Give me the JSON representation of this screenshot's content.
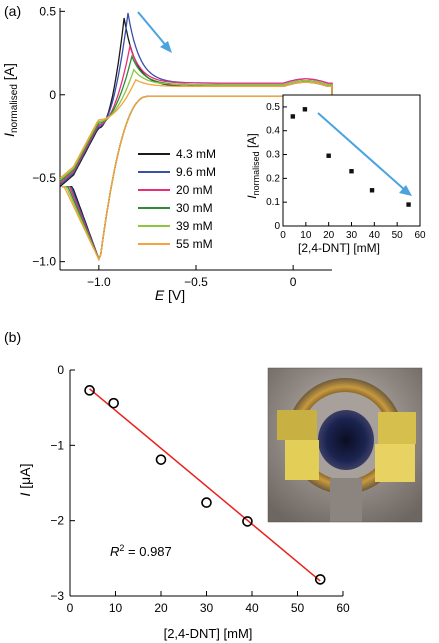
{
  "panel_a": {
    "label": "(a)",
    "ylabel_main": "I",
    "ylabel_sub": "normalised",
    "ylabel_unit": " [A]",
    "xlabel_main": "E",
    "xlabel_unit": " [V]",
    "inset_xlabel": "[2,4-DNT] [mM]"
  },
  "panel_b": {
    "label": "(b)",
    "ylabel_main": "I",
    "ylabel_unit": " [μA]",
    "xlabel": "[2,4-DNT] [mM]",
    "r2_main": "R",
    "r2_sup": "2",
    "r2_value": " = 0.987"
  },
  "photo": {
    "description": "electrode"
  },
  "chart_data": [
    {
      "type": "line",
      "xlabel": "E [V]",
      "ylabel": "I normalised [A]",
      "xlim": [
        -1.2,
        0.2
      ],
      "ylim": [
        -1.05,
        0.52
      ],
      "xticks": [
        -1.0,
        -0.5,
        0
      ],
      "xtick_labels": [
        "−1.0",
        "−0.5",
        "0"
      ],
      "yticks": [
        -1.0,
        -0.5,
        0,
        0.5
      ],
      "ytick_labels": [
        "−1.0",
        "−0.5",
        "0",
        "0.5"
      ],
      "legend_position": "lower-center",
      "annotations": [
        "blue arrow indicating decreasing oxidation peak with increasing concentration"
      ],
      "series": [
        {
          "name": "4.3 mM",
          "color": "#1a1a1a",
          "peak_ox_E": -0.87,
          "peak_ox_I": 0.46,
          "trough_I": -1.0,
          "tail_I": 0.05,
          "pre_peak_shift": 0.0
        },
        {
          "name": "9.6 mM",
          "color": "#3a4fa8",
          "peak_ox_E": -0.85,
          "peak_ox_I": 0.49,
          "trough_I": -1.0,
          "tail_I": 0.07,
          "pre_peak_shift": 0.01
        },
        {
          "name": "20 mM",
          "color": "#e8307a",
          "peak_ox_E": -0.84,
          "peak_ox_I": 0.29,
          "trough_I": -1.0,
          "tail_I": 0.07,
          "pre_peak_shift": 0.02
        },
        {
          "name": "30 mM",
          "color": "#2e8b3a",
          "peak_ox_E": -0.83,
          "peak_ox_I": 0.23,
          "trough_I": -1.0,
          "tail_I": 0.06,
          "pre_peak_shift": 0.03
        },
        {
          "name": "39 mM",
          "color": "#8cc63f",
          "peak_ox_E": -0.82,
          "peak_ox_I": 0.15,
          "trough_I": -1.0,
          "tail_I": 0.06,
          "pre_peak_shift": 0.04
        },
        {
          "name": "55 mM",
          "color": "#f5a33a",
          "peak_ox_E": -0.81,
          "peak_ox_I": 0.09,
          "trough_I": -1.0,
          "tail_I": 0.05,
          "pre_peak_shift": 0.05
        }
      ]
    },
    {
      "type": "scatter",
      "xlabel": "[2,4-DNT] [mM]",
      "ylabel": "I normalised [A]",
      "xlim": [
        0,
        60
      ],
      "ylim": [
        0,
        0.55
      ],
      "xticks": [
        0,
        10,
        20,
        30,
        40,
        50,
        60
      ],
      "yticks": [
        0,
        0.1,
        0.2,
        0.3,
        0.4,
        0.5
      ],
      "x": [
        4.3,
        9.6,
        20,
        30,
        39,
        55
      ],
      "y": [
        0.46,
        0.49,
        0.295,
        0.23,
        0.15,
        0.09
      ],
      "annotations": [
        "blue arrow showing downward trend"
      ]
    },
    {
      "type": "scatter",
      "xlabel": "[2,4-DNT] [mM]",
      "ylabel": "I [μA]",
      "xlim": [
        0,
        60
      ],
      "ylim": [
        -3,
        0
      ],
      "xticks": [
        0,
        10,
        20,
        30,
        40,
        50,
        60
      ],
      "yticks": [
        0,
        -1,
        -2,
        -3
      ],
      "x": [
        4.3,
        9.6,
        20,
        30,
        39,
        55
      ],
      "y": [
        -0.27,
        -0.44,
        -1.19,
        -1.76,
        -2.01,
        -2.78
      ],
      "fit_line": {
        "x": [
          4.3,
          55
        ],
        "y": [
          -0.25,
          -2.8
        ],
        "color": "#e8231e"
      },
      "r2": 0.987
    }
  ]
}
